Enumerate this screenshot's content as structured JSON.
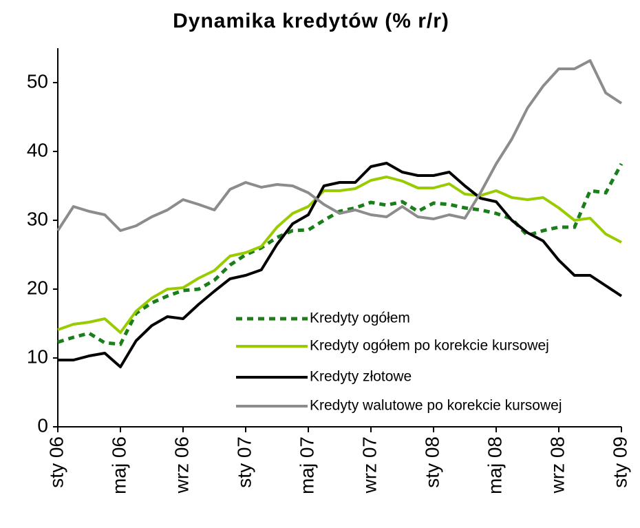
{
  "chart_data": {
    "type": "line",
    "title": "Dynamika kredytów (% r/r)",
    "categories": [
      "sty 06",
      null,
      null,
      null,
      "maj 06",
      null,
      null,
      null,
      "wrz 06",
      null,
      null,
      null,
      "sty 07",
      null,
      null,
      null,
      "maj 07",
      null,
      null,
      null,
      "wrz 07",
      null,
      null,
      null,
      "sty 08",
      null,
      null,
      null,
      "maj 08",
      null,
      null,
      null,
      "wrz 08",
      null,
      null,
      null,
      "sty 09"
    ],
    "ylim": [
      0,
      55
    ],
    "yticks": [
      0,
      10,
      20,
      30,
      40,
      50
    ],
    "grid": false,
    "legend": "lower right",
    "series": [
      {
        "name": "Kredyty ogółem",
        "color": "#1a7f1a",
        "dashed": true,
        "values": [
          12.3,
          13,
          13.6,
          12.2,
          12.0,
          16.5,
          18,
          19,
          19.8,
          20,
          21.3,
          23.5,
          25,
          26,
          27.5,
          28.5,
          28.6,
          30,
          31.3,
          31.8,
          32.6,
          32.2,
          32.7,
          31.3,
          32.5,
          32.3,
          31.8,
          31.5,
          31,
          30.2,
          27.8,
          28.5,
          29,
          29,
          34.3,
          34,
          38.2
        ]
      },
      {
        "name": "Kredyty ogółem po korekcie kursowej",
        "color": "#99cc00",
        "dashed": false,
        "values": [
          14.1,
          14.9,
          15.2,
          15.7,
          13.7,
          16.8,
          18.7,
          20,
          20.2,
          21.6,
          22.7,
          24.8,
          25.3,
          26.2,
          29,
          31,
          32,
          34.3,
          34.3,
          34.6,
          35.8,
          36.3,
          35.7,
          34.7,
          34.7,
          35.3,
          33.8,
          33.6,
          34.3,
          33.3,
          33,
          33.3,
          31.8,
          30,
          30.3,
          28,
          26.8
        ]
      },
      {
        "name": "Kredyty złotowe",
        "color": "#000000",
        "dashed": false,
        "values": [
          9.7,
          9.7,
          10.3,
          10.7,
          8.7,
          12.5,
          14.7,
          16,
          15.7,
          17.8,
          19.7,
          21.5,
          22,
          22.8,
          26.5,
          29.5,
          30.8,
          35,
          35.5,
          35.5,
          37.8,
          38.3,
          37,
          36.5,
          36.5,
          37,
          35,
          33.2,
          32.7,
          30,
          28.2,
          27,
          24.2,
          22,
          22,
          20.5,
          19
        ]
      },
      {
        "name": "Kredyty walutowe po korekcie kursowej",
        "color": "#8c8c8c",
        "dashed": false,
        "values": [
          28.5,
          32,
          31.3,
          30.8,
          28.5,
          29.2,
          30.5,
          31.5,
          33,
          32.3,
          31.5,
          34.5,
          35.5,
          34.8,
          35.2,
          35,
          34,
          32.3,
          31,
          31.5,
          30.8,
          30.5,
          32,
          30.5,
          30.2,
          30.8,
          30.3,
          34,
          38.2,
          41.8,
          46.3,
          49.5,
          52,
          52,
          53.2,
          48.5,
          47
        ]
      }
    ]
  }
}
